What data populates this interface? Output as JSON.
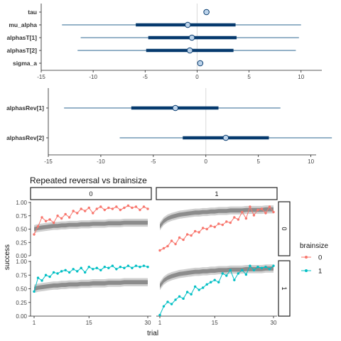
{
  "chart_data": [
    {
      "type": "interval",
      "xlim": [
        -15,
        12
      ],
      "x_ticks": [
        -15,
        -10,
        -5,
        0,
        5,
        10
      ],
      "reference_line": 0,
      "parameters": [
        {
          "name": "tau",
          "median": 0.9,
          "inner": [
            0.9,
            0.9
          ],
          "outer": [
            0.9,
            0.9
          ]
        },
        {
          "name": "mu_alpha",
          "median": -0.9,
          "inner": [
            -5.9,
            3.7
          ],
          "outer": [
            -13.0,
            10.0
          ]
        },
        {
          "name": "alphasT[1]",
          "median": -0.5,
          "inner": [
            -4.7,
            3.8
          ],
          "outer": [
            -11.2,
            9.8
          ]
        },
        {
          "name": "alphasT[2]",
          "median": -0.7,
          "inner": [
            -4.9,
            3.5
          ],
          "outer": [
            -11.5,
            9.5
          ]
        },
        {
          "name": "sigma_a",
          "median": 0.3,
          "inner": [
            0.2,
            0.4
          ],
          "outer": [
            0.2,
            0.4
          ]
        }
      ]
    },
    {
      "type": "interval",
      "xlim": [
        -15,
        10.5
      ],
      "x_ticks": [
        -15,
        -10,
        -5,
        0,
        5,
        10
      ],
      "reference_line": 0,
      "parameters": [
        {
          "name": "alphasRev[1]",
          "median": -2.9,
          "inner": [
            -7.1,
            1.2
          ],
          "outer": [
            -13.5,
            7.1
          ]
        },
        {
          "name": "alphasRev[2]",
          "median": 1.9,
          "inner": [
            -2.2,
            6.0
          ],
          "outer": [
            -8.2,
            12.0
          ]
        }
      ]
    },
    {
      "type": "line",
      "title": "Repeated reversal vs brainsize",
      "xlabel": "trial",
      "ylabel": "success",
      "xlim": [
        1,
        30
      ],
      "ylim": [
        0,
        1
      ],
      "x_ticks": [
        1,
        15,
        30
      ],
      "y_ticks": [
        "0.00",
        "0.25",
        "0.50",
        "0.75",
        "1.00"
      ],
      "col_facets": [
        "0",
        "1"
      ],
      "row_facets": [
        "0",
        "1"
      ],
      "legend_title": "brainsize",
      "legend_position": "right",
      "series": [
        {
          "name": "0",
          "color": "#F8766D"
        },
        {
          "name": "1",
          "color": "#00BFC4"
        }
      ],
      "x": [
        1,
        2,
        3,
        4,
        5,
        6,
        7,
        8,
        9,
        10,
        11,
        12,
        13,
        14,
        15,
        16,
        17,
        18,
        19,
        20,
        21,
        22,
        23,
        24,
        25,
        26,
        27,
        28,
        29,
        30
      ],
      "panels": [
        {
          "col": "0",
          "row": "0",
          "brainsize": "0",
          "observed": [
            0.4,
            0.55,
            0.72,
            0.65,
            0.68,
            0.62,
            0.75,
            0.7,
            0.78,
            0.72,
            0.84,
            0.8,
            0.88,
            0.84,
            0.9,
            0.8,
            0.88,
            0.92,
            0.86,
            0.9,
            0.88,
            0.92,
            0.86,
            0.9,
            0.94,
            0.9,
            0.92,
            0.86,
            0.92,
            0.88
          ],
          "model_mean": [
            0.5,
            0.52,
            0.53,
            0.54,
            0.55,
            0.56,
            0.56,
            0.57,
            0.57,
            0.58,
            0.58,
            0.58,
            0.59,
            0.59,
            0.59,
            0.6,
            0.6,
            0.6,
            0.6,
            0.61,
            0.61,
            0.61,
            0.61,
            0.62,
            0.62,
            0.62,
            0.62,
            0.62,
            0.62,
            0.62
          ],
          "interval_width": 0.15
        },
        {
          "col": "1",
          "row": "0",
          "brainsize": "0",
          "observed": [
            0.1,
            0.14,
            0.18,
            0.28,
            0.22,
            0.34,
            0.3,
            0.4,
            0.38,
            0.46,
            0.44,
            0.52,
            0.5,
            0.56,
            0.54,
            0.6,
            0.58,
            0.64,
            0.62,
            0.72,
            0.68,
            0.82,
            0.7,
            0.92,
            0.76,
            0.86,
            0.88,
            0.8,
            0.92,
            0.82
          ],
          "model_mean": [
            0.55,
            0.65,
            0.7,
            0.73,
            0.75,
            0.77,
            0.78,
            0.79,
            0.8,
            0.81,
            0.81,
            0.82,
            0.82,
            0.83,
            0.83,
            0.84,
            0.84,
            0.84,
            0.85,
            0.85,
            0.85,
            0.85,
            0.86,
            0.86,
            0.86,
            0.86,
            0.86,
            0.87,
            0.87,
            0.87
          ],
          "interval_width": 0.15
        },
        {
          "col": "0",
          "row": "1",
          "brainsize": "1",
          "observed": [
            0.45,
            0.7,
            0.65,
            0.75,
            0.72,
            0.8,
            0.78,
            0.82,
            0.84,
            0.8,
            0.86,
            0.82,
            0.88,
            0.8,
            0.9,
            0.86,
            0.88,
            0.84,
            0.9,
            0.88,
            0.92,
            0.86,
            0.9,
            0.88,
            0.92,
            0.88,
            0.92,
            0.9,
            0.92,
            0.9
          ],
          "model_mean": [
            0.5,
            0.52,
            0.53,
            0.54,
            0.55,
            0.56,
            0.56,
            0.57,
            0.57,
            0.58,
            0.58,
            0.58,
            0.59,
            0.59,
            0.59,
            0.6,
            0.6,
            0.6,
            0.6,
            0.61,
            0.61,
            0.61,
            0.61,
            0.62,
            0.62,
            0.62,
            0.62,
            0.62,
            0.62,
            0.62
          ],
          "interval_width": 0.15
        },
        {
          "col": "1",
          "row": "1",
          "brainsize": "1",
          "observed": [
            0.02,
            0.18,
            0.26,
            0.22,
            0.3,
            0.36,
            0.32,
            0.44,
            0.4,
            0.54,
            0.48,
            0.52,
            0.58,
            0.62,
            0.66,
            0.62,
            0.78,
            0.74,
            0.84,
            0.66,
            0.78,
            0.84,
            0.76,
            0.92,
            0.84,
            0.9,
            0.88,
            0.9,
            0.86,
            0.92
          ],
          "model_mean": [
            0.55,
            0.65,
            0.7,
            0.73,
            0.75,
            0.77,
            0.78,
            0.79,
            0.8,
            0.81,
            0.81,
            0.82,
            0.82,
            0.83,
            0.83,
            0.84,
            0.84,
            0.84,
            0.85,
            0.85,
            0.85,
            0.85,
            0.86,
            0.86,
            0.86,
            0.86,
            0.86,
            0.87,
            0.87,
            0.87
          ],
          "interval_width": 0.15
        }
      ]
    }
  ],
  "colors": {
    "interval_line": "#2b6690",
    "interval_thick": "#063a6e",
    "point_fill": "#bcd3ea",
    "ref_line": "#d9d9d9",
    "band_outer": "#cfcfcf",
    "band_inner": "#8c8c8c"
  }
}
